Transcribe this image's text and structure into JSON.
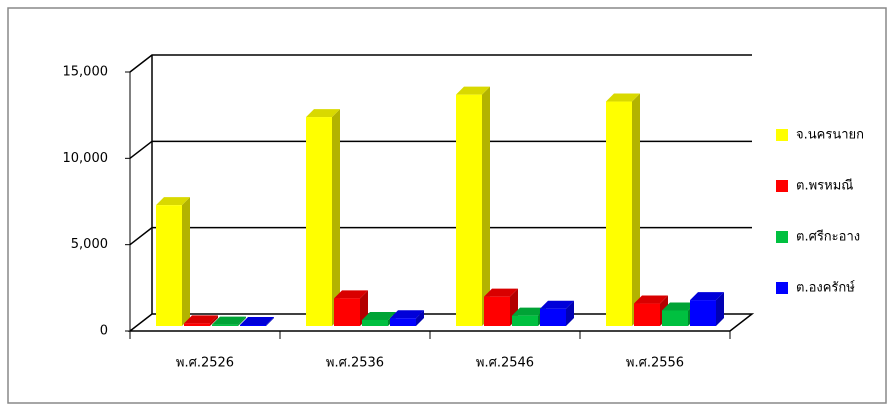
{
  "chart_data": {
    "type": "bar3d",
    "categories": [
      "พ.ศ.2526",
      "พ.ศ.2536",
      "พ.ศ.2546",
      "พ.ศ.2556"
    ],
    "series": [
      {
        "name": "จ.นครนายก",
        "color": "#ffff00",
        "values": [
          7000,
          12100,
          13400,
          13000
        ]
      },
      {
        "name": "ต.พรหมณี",
        "color": "#ff0000",
        "values": [
          150,
          1600,
          1700,
          1300
        ]
      },
      {
        "name": "ต.ศรีกะอาง",
        "color": "#00c040",
        "values": [
          80,
          350,
          600,
          900
        ]
      },
      {
        "name": "ต.องครักษ์",
        "color": "#0000ff",
        "values": [
          60,
          450,
          1000,
          1500
        ]
      }
    ],
    "ylim": [
      0,
      15000
    ],
    "yticks": [
      0,
      {
        "value": 5000,
        "label": "5,000"
      },
      {
        "value": 10000,
        "label": "10,000"
      },
      {
        "value": 15000,
        "label": "15,000"
      }
    ],
    "grid": true,
    "legend": "right"
  }
}
